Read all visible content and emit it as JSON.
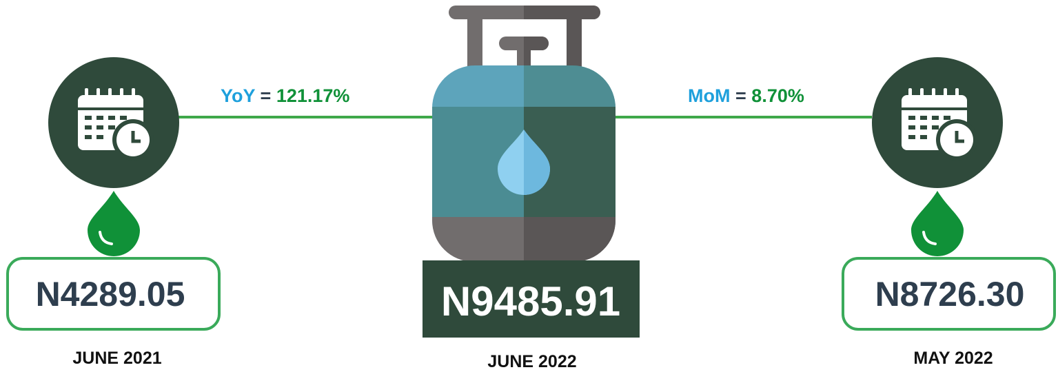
{
  "yoy": {
    "label": "YoY",
    "equals": "=",
    "value": "121.17%"
  },
  "mom": {
    "label": "MoM",
    "equals": "=",
    "value": "8.70%"
  },
  "left": {
    "price": "N4289.05",
    "period": "JUNE 2021"
  },
  "center": {
    "price": "N9485.91",
    "period": "JUNE 2022"
  },
  "right": {
    "price": "N8726.30",
    "period": "MAY 2022"
  }
}
